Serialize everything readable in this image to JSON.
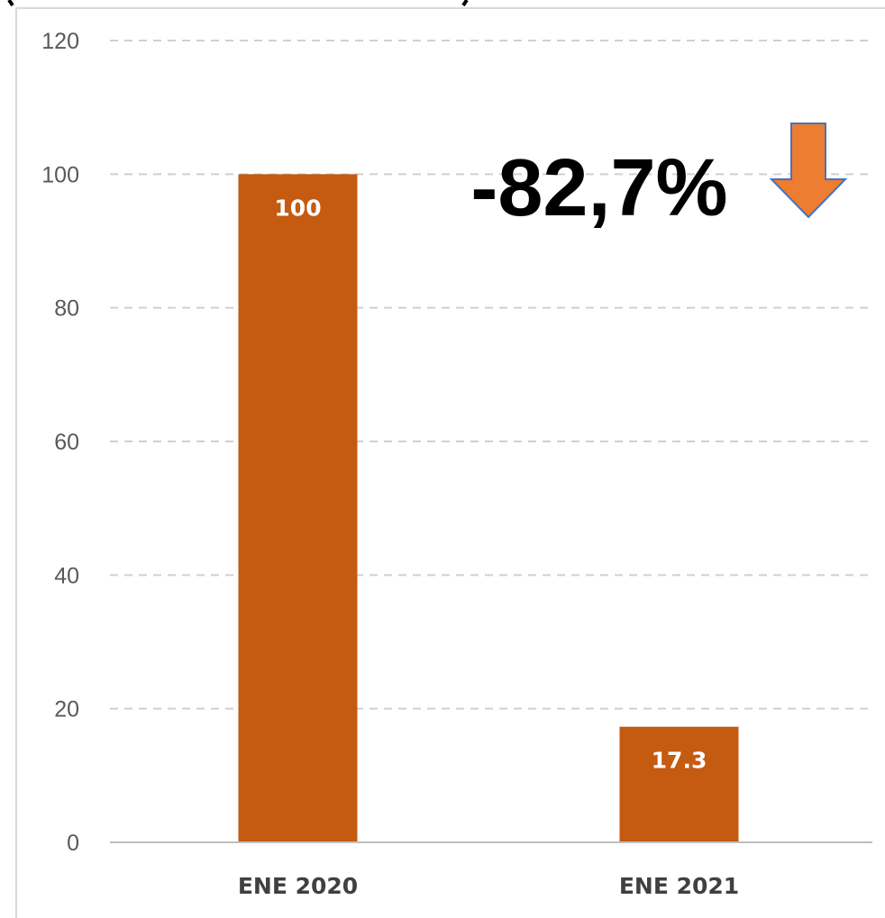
{
  "chart_data": {
    "type": "bar",
    "title": "",
    "xlabel": "",
    "ylabel": "",
    "categories": [
      "ENE 2020",
      "ENE 2021"
    ],
    "values": [
      100,
      17.3
    ],
    "data_labels": [
      "100",
      "17.3"
    ],
    "ylim": [
      0,
      120
    ],
    "yticks": [
      0,
      20,
      40,
      60,
      80,
      100,
      120
    ],
    "ytick_labels": [
      "0",
      "20",
      "40",
      "60",
      "80",
      "100",
      "120"
    ],
    "grid": true,
    "legend": "none",
    "bar_color": "#c55a11",
    "annotation": {
      "text": "-82,7%",
      "icon": "down-arrow-icon",
      "icon_color": "#ed7d31"
    }
  }
}
